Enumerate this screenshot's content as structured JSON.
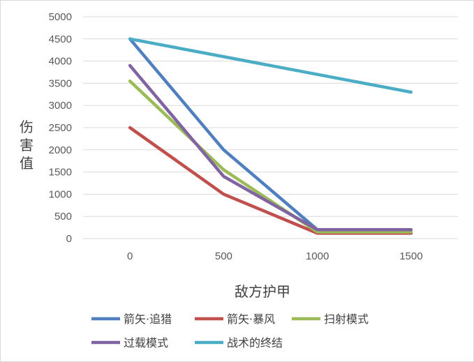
{
  "chart_data": {
    "type": "line",
    "title": "",
    "xlabel": "敌方护甲",
    "ylabel": "伤害值",
    "categories": [
      "0",
      "500",
      "1000",
      "1500"
    ],
    "ylim": [
      0,
      5000
    ],
    "yticks": [
      "0",
      "500",
      "1000",
      "1500",
      "2000",
      "2500",
      "3000",
      "3500",
      "4000",
      "4500",
      "5000"
    ],
    "grid": true,
    "legend_position": "bottom",
    "series": [
      {
        "name": "箭矢·追猎",
        "color": "#4f7fbf",
        "values": [
          4500,
          2000,
          200,
          200
        ]
      },
      {
        "name": "箭矢·暴风",
        "color": "#c0504d",
        "values": [
          2500,
          1000,
          120,
          120
        ]
      },
      {
        "name": "扫射模式",
        "color": "#9bbb59",
        "values": [
          3550,
          1550,
          150,
          150
        ]
      },
      {
        "name": "过载模式",
        "color": "#8064a2",
        "values": [
          3900,
          1400,
          200,
          200
        ]
      },
      {
        "name": "战术的终结",
        "color": "#4bacc6",
        "values": [
          4500,
          4100,
          3700,
          3300
        ]
      }
    ]
  }
}
